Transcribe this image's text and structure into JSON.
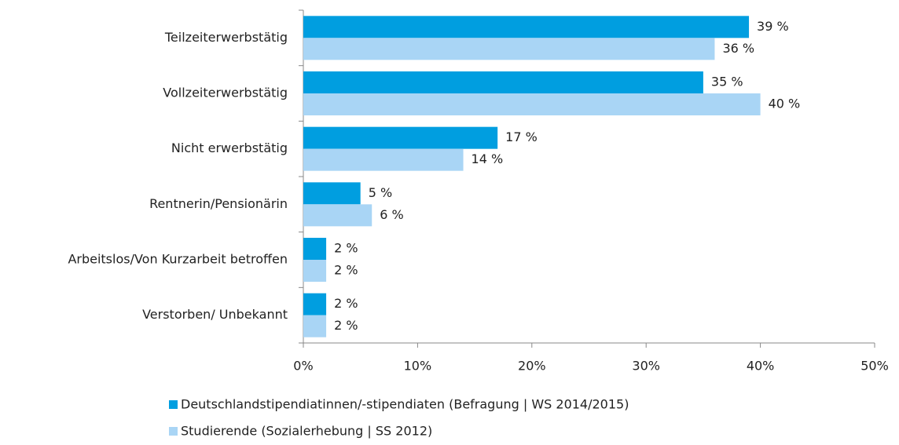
{
  "chart_data": {
    "type": "hbar",
    "categories": [
      "Teilzeiterwerbstätig",
      "Vollzeiterwerbstätig",
      "Nicht erwerbstätig",
      "Rentnerin/Pensionärin",
      "Arbeitslos/Von Kurzarbeit betroffen",
      "Verstorben/ Unbekannt"
    ],
    "series": [
      {
        "name": "Deutschlandstipendiatinnen/-stipendiaten (Befragung | WS 2014/2015)",
        "color": "#009ee0",
        "values": [
          39,
          35,
          17,
          5,
          2,
          2
        ],
        "value_labels": [
          "39 %",
          "35 %",
          "17 %",
          "5 %",
          "2 %",
          "2 %"
        ]
      },
      {
        "name": "Studierende (Sozialerhebung | SS 2012)",
        "color": "#a9d5f5",
        "values": [
          36,
          40,
          14,
          6,
          2,
          2
        ],
        "value_labels": [
          "36 %",
          "40 %",
          "14 %",
          "6 %",
          "2 %",
          "2 %"
        ]
      }
    ],
    "xlim": [
      0,
      50
    ],
    "xticks": [
      {
        "value": 0,
        "label": "0%"
      },
      {
        "value": 10,
        "label": "10%"
      },
      {
        "value": 20,
        "label": "20%"
      },
      {
        "value": 30,
        "label": "30%"
      },
      {
        "value": 40,
        "label": "40%"
      },
      {
        "value": 50,
        "label": "50%"
      }
    ],
    "legend": "bottom"
  }
}
